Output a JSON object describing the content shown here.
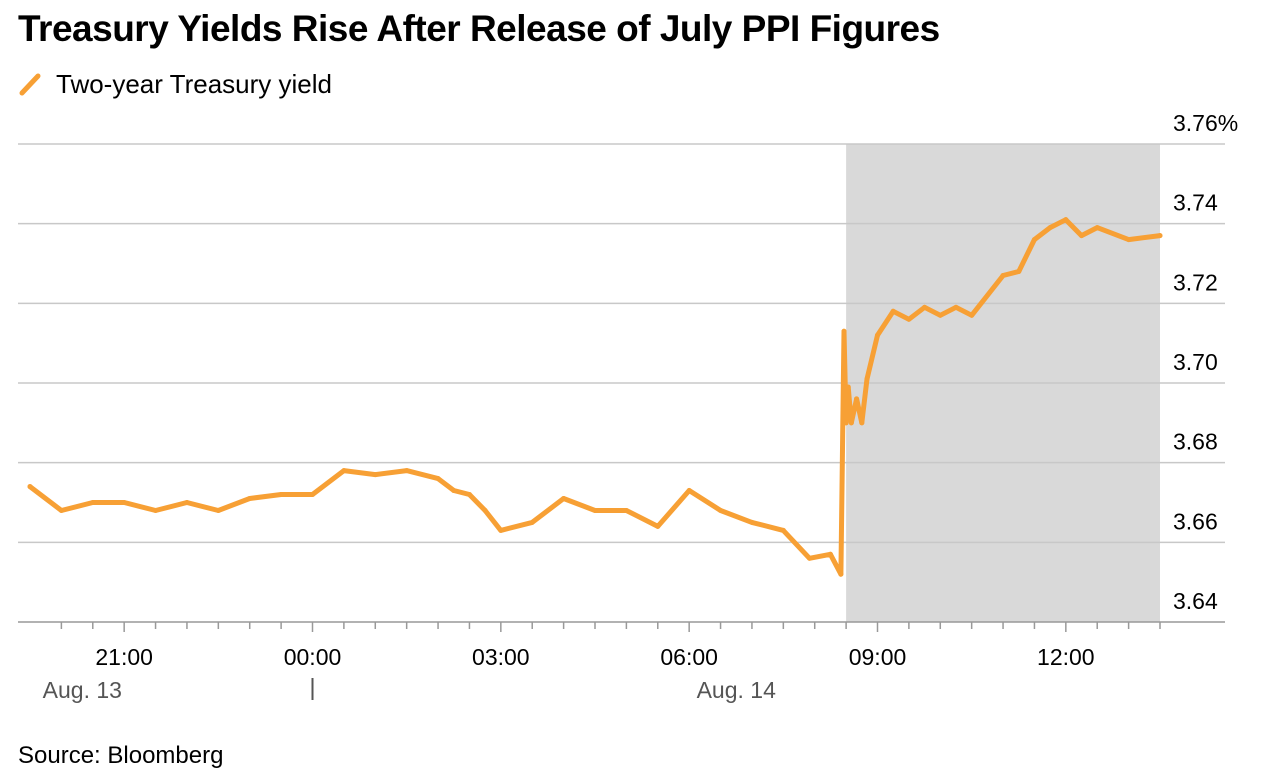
{
  "chart_data": {
    "type": "line",
    "title": "Treasury Yields Rise After Release of July PPI Figures",
    "source": "Source: Bloomberg",
    "series": [
      {
        "name": "Two-year Treasury yield",
        "color": "#f7a035",
        "x": [
          "19:30",
          "20:00",
          "20:30",
          "21:00",
          "21:30",
          "22:00",
          "22:30",
          "23:00",
          "23:30",
          "00:00",
          "00:30",
          "01:00",
          "01:30",
          "02:00",
          "02:15",
          "02:30",
          "02:45",
          "03:00",
          "03:30",
          "04:00",
          "04:30",
          "05:00",
          "05:30",
          "06:00",
          "06:30",
          "07:00",
          "07:30",
          "07:55",
          "08:15",
          "08:25",
          "08:28",
          "08:30",
          "08:32",
          "08:35",
          "08:40",
          "08:45",
          "08:50",
          "09:00",
          "09:15",
          "09:30",
          "09:45",
          "10:00",
          "10:15",
          "10:30",
          "11:00",
          "11:15",
          "11:30",
          "11:45",
          "12:00",
          "12:15",
          "12:30",
          "13:00",
          "13:30"
        ],
        "values": [
          3.674,
          3.668,
          3.67,
          3.67,
          3.668,
          3.67,
          3.668,
          3.671,
          3.672,
          3.672,
          3.678,
          3.677,
          3.678,
          3.676,
          3.673,
          3.672,
          3.668,
          3.663,
          3.665,
          3.671,
          3.668,
          3.668,
          3.664,
          3.673,
          3.668,
          3.665,
          3.663,
          3.656,
          3.657,
          3.652,
          3.713,
          3.69,
          3.699,
          3.69,
          3.696,
          3.69,
          3.701,
          3.712,
          3.718,
          3.716,
          3.719,
          3.717,
          3.719,
          3.717,
          3.727,
          3.728,
          3.736,
          3.739,
          3.741,
          3.737,
          3.739,
          3.736,
          3.737
        ]
      }
    ],
    "xlabel": "",
    "ylabel": "",
    "x_ticks": [
      "21:00",
      "00:00",
      "03:00",
      "06:00",
      "09:00",
      "12:00"
    ],
    "date_labels": [
      "Aug. 13",
      "Aug. 14"
    ],
    "y_ticks": [
      "3.64",
      "3.66",
      "3.68",
      "3.70",
      "3.72",
      "3.74",
      "3.76%"
    ],
    "ylim": [
      3.64,
      3.76
    ],
    "x_range": [
      "19:30",
      "13:30"
    ],
    "shaded_region": {
      "start": "08:30",
      "end": "13:30",
      "color": "#d9d9d9"
    },
    "grid": "horizontal",
    "legend_position": "top-left"
  }
}
